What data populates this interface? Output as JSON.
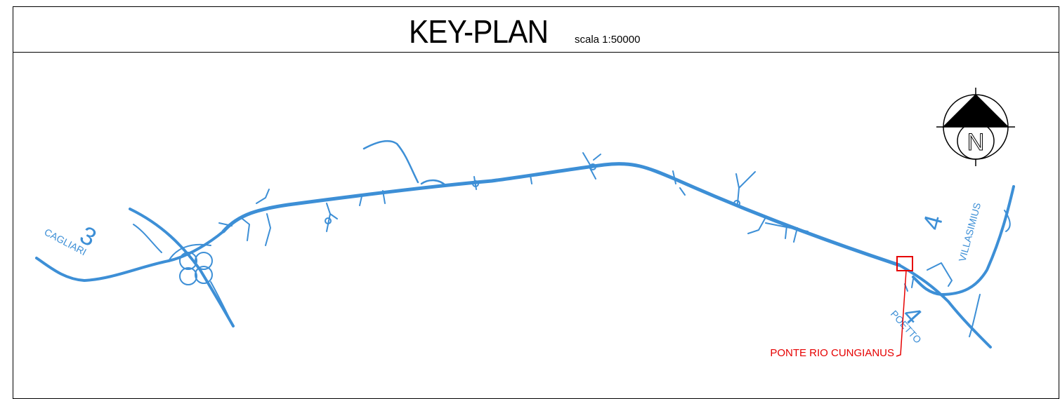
{
  "title": "KEY-PLAN",
  "scale": "scala 1:50000",
  "colors": {
    "road": "#3d8fd6",
    "label_blue": "#3d8fd6",
    "highlight": "#e60000",
    "frame": "#000000"
  },
  "labels": {
    "cagliari_number": "3",
    "cagliari_name": "CAGLIARI",
    "villasimius_number": "4",
    "villasimius_name": "VILLASIMIUS",
    "poetto_number": "4",
    "poetto_name": "POETTO",
    "bridge_name": "PONTE RIO CUNGIANUS"
  },
  "north_arrow": {
    "letter": "N",
    "icon": "north-arrow-icon"
  }
}
